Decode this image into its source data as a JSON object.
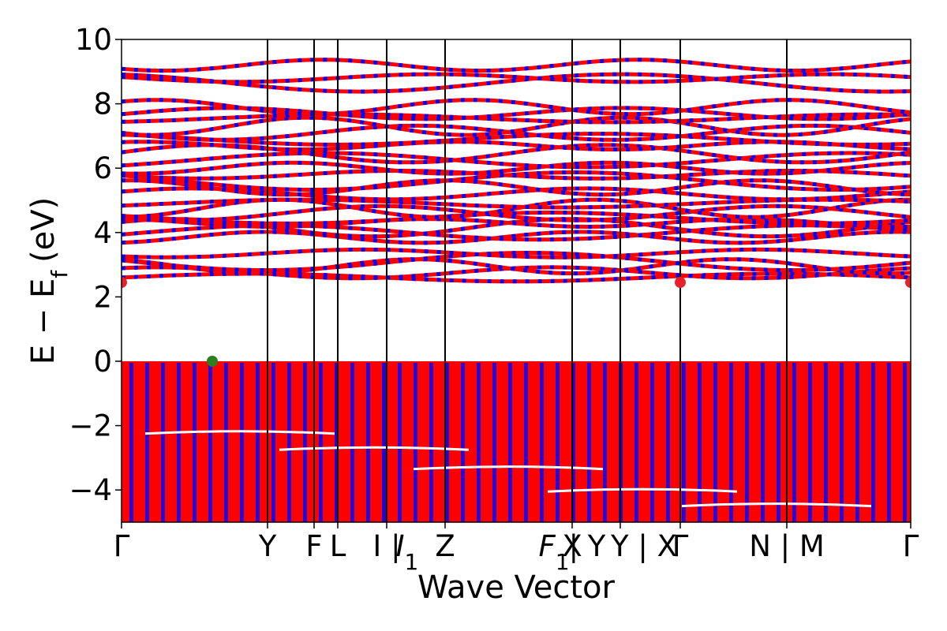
{
  "chart_data": {
    "type": "line",
    "title": "",
    "xlabel": "Wave Vector",
    "ylabel": "E − E",
    "ylabel_subscript": "f",
    "ylabel_unit": "(eV)",
    "ylim": [
      -5,
      10
    ],
    "yticks": [
      -4,
      -2,
      0,
      2,
      4,
      6,
      8,
      10
    ],
    "ytick_labels": [
      "−4",
      "−2",
      "0",
      "2",
      "4",
      "6",
      "8",
      "10"
    ],
    "grid": false,
    "kpath_positions": [
      0,
      0.185,
      0.244,
      0.274,
      0.336,
      0.41,
      0.571,
      0.632,
      0.708,
      0.843,
      1.0
    ],
    "kpath_labels": [
      {
        "text": "Γ",
        "pos": 0.0
      },
      {
        "text": "Y",
        "pos": 0.185
      },
      {
        "text": "F",
        "pos": 0.244
      },
      {
        "text": "L",
        "pos": 0.274
      },
      {
        "text": "I | ",
        "pos": 0.336
      },
      {
        "text": "I",
        "sub": "1",
        "italic": true,
        "pos": 0.362
      },
      {
        "text": "Z",
        "pos": 0.41
      },
      {
        "text": "F",
        "sub": "1",
        "italic": true,
        "pos": 0.548
      },
      {
        "text": " | Y",
        "pos": 0.59
      },
      {
        "text": "X",
        "pos": 0.571
      },
      {
        "text": "Y | X",
        "pos": 0.662
      },
      {
        "text": "Γ",
        "pos": 0.708
      },
      {
        "text": "N | M",
        "pos": 0.843
      },
      {
        "text": "Γ",
        "pos": 1.0
      }
    ],
    "band_gap": {
      "vbm": 0.0,
      "cbm": 2.45
    },
    "markers": [
      {
        "label": "VBM",
        "x": 0.115,
        "y": 0.0,
        "color": "#2e7d1e"
      },
      {
        "label": "CBM",
        "x": 0.0,
        "y": 2.45,
        "color": "#e8202a"
      },
      {
        "label": "CBM",
        "x": 0.708,
        "y": 2.45,
        "color": "#e8202a"
      },
      {
        "label": "CBM",
        "x": 1.0,
        "y": 2.45,
        "color": "#e8202a"
      }
    ],
    "series": [
      {
        "name": "",
        "color": "#ff0000"
      },
      {
        "name": "",
        "color": "#0000ff"
      }
    ],
    "conduction_band_levels": [
      2.6,
      2.75,
      2.95,
      3.1,
      3.35,
      3.85,
      4.0,
      4.15,
      4.3,
      4.45,
      4.6,
      4.75,
      4.9,
      5.2,
      5.4,
      5.6,
      5.8,
      6.0,
      6.25,
      6.45,
      6.7,
      6.9,
      7.1,
      7.3,
      7.55,
      7.7,
      7.9,
      8.65,
      8.8,
      9.2
    ]
  }
}
